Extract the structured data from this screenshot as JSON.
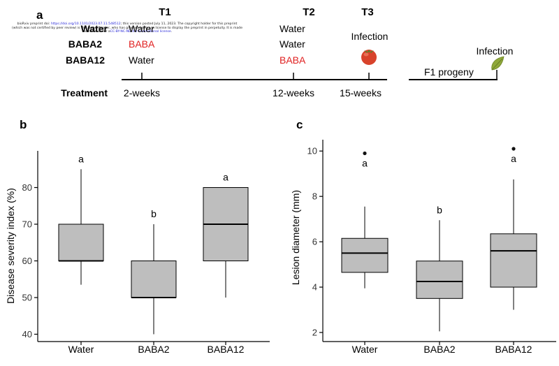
{
  "panel_a": {
    "label": "a",
    "time_labels": [
      "T1",
      "T2",
      "T3"
    ],
    "rows": [
      {
        "name": "Water",
        "t1": "Water",
        "t2": "Water"
      },
      {
        "name": "BABA2",
        "t1": "BABA",
        "t2": "Water"
      },
      {
        "name": "BABA12",
        "t1": "Water",
        "t2": "BABA"
      }
    ],
    "infection_label": "Infection",
    "treatment_label": "Treatment",
    "week_labels": [
      "2-weeks",
      "12-weeks",
      "15-weeks"
    ],
    "f1_label": "F1 progeny",
    "f1_infection_label": "Infection",
    "icons": [
      "tomato-icon",
      "leaf-icon"
    ],
    "colors": {
      "baba": "#e02020",
      "tomato": "#d8432b",
      "leaf": "#8fa83a"
    },
    "preprint_notice": {
      "line1_a": "bioRxiv preprint doi: ",
      "line1_link": "https://doi.org/10.1101/2023.07.11.548512",
      "line1_b": "; this version posted July 11, 2023. The copyright holder for this preprint",
      "line2": "(which was not certified by peer review) is the author/funder, who has granted bioRxiv a license to display the preprint in perpetuity. It is made",
      "line3_a": "available under a",
      "line3_link": "CC-BY-NC-ND 4.0 International license",
      "line3_b": "."
    }
  },
  "chart_data": [
    {
      "panel": "b",
      "type": "box",
      "ylabel": "Disease severity index (%)",
      "xlabel": "",
      "categories": [
        "Water",
        "BABA2",
        "BABA12"
      ],
      "ylim": [
        38,
        90
      ],
      "yticks": [
        40,
        50,
        60,
        70,
        80
      ],
      "boxes": [
        {
          "min": 53.5,
          "q1": 60,
          "median": 60,
          "q3": 70,
          "max": 85,
          "outliers": [],
          "letter": "a"
        },
        {
          "min": 40,
          "q1": 50,
          "median": 50,
          "q3": 60,
          "max": 70,
          "outliers": [],
          "letter": "b"
        },
        {
          "min": 50,
          "q1": 60,
          "median": 70,
          "q3": 80,
          "max": 80,
          "outliers": [],
          "letter": "a"
        }
      ],
      "fill_color": "#bebebe"
    },
    {
      "panel": "c",
      "type": "box",
      "ylabel": "Lesion diameter (mm)",
      "xlabel": "",
      "categories": [
        "Water",
        "BABA2",
        "BABA12"
      ],
      "ylim": [
        1.6,
        10.5
      ],
      "yticks": [
        2,
        4,
        6,
        8,
        10
      ],
      "boxes": [
        {
          "min": 3.95,
          "q1": 4.65,
          "median": 5.5,
          "q3": 6.15,
          "max": 7.55,
          "outliers": [
            9.9
          ],
          "letter": "a"
        },
        {
          "min": 2.05,
          "q1": 3.5,
          "median": 4.25,
          "q3": 5.15,
          "max": 6.95,
          "outliers": [],
          "letter": "b"
        },
        {
          "min": 3.0,
          "q1": 4.0,
          "median": 5.6,
          "q3": 6.35,
          "max": 8.75,
          "outliers": [
            10.1
          ],
          "letter": "a"
        }
      ],
      "fill_color": "#bebebe"
    }
  ]
}
